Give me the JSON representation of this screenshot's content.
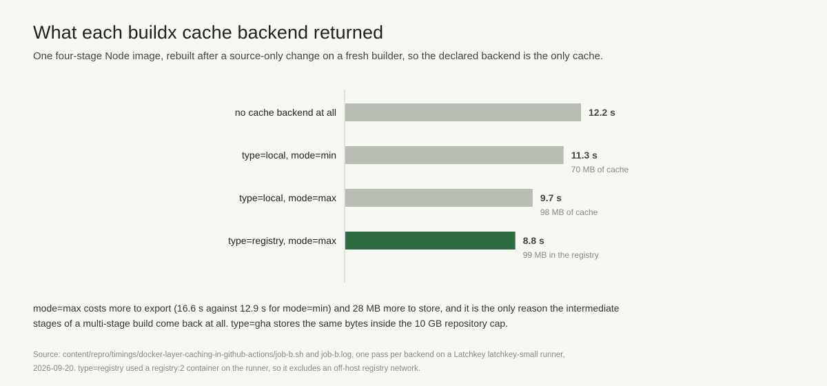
{
  "title": "What each buildx cache backend returned",
  "subtitle": "One four-stage Node image, rebuilt after a source-only change on a fresh builder, so the declared backend is the only cache.",
  "chart_data": {
    "type": "bar",
    "orientation": "horizontal",
    "categories": [
      "no cache backend at all",
      "type=local, mode=min",
      "type=local, mode=max",
      "type=registry, mode=max"
    ],
    "values": [
      12.2,
      11.3,
      9.7,
      8.8
    ],
    "value_labels": [
      "12.2 s",
      "11.3 s",
      "9.7 s",
      "8.8 s"
    ],
    "notes": [
      "",
      "70 MB of cache",
      "98 MB of cache",
      "99 MB in the registry"
    ],
    "unit": "s",
    "xlim": [
      0,
      12.2
    ],
    "highlight_index": 3,
    "colors": {
      "bar": "#b9beb5",
      "highlight": "#2e6b40",
      "axis": "#dcdcd6"
    },
    "grid": false,
    "legend": "none"
  },
  "footnote": "mode=max costs more to export (16.6 s against 12.9 s for mode=min) and 28 MB more to store, and it is the only reason the intermediate stages of a multi-stage build come back at all. type=gha stores the same bytes inside the 10 GB repository cap.",
  "source": "Source: content/repro/timings/docker-layer-caching-in-github-actions/job-b.sh and job-b.log, one pass per backend on a Latchkey latchkey-small runner, 2026-09-20. type=registry used a registry:2 container on the runner, so it excludes an off-host registry network."
}
